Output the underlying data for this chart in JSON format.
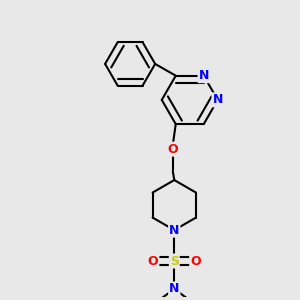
{
  "background_color": "#e8e8e8",
  "bond_color": "#000000",
  "N_color": "#0000ff",
  "O_color": "#ff0000",
  "S_color": "#cccc00",
  "font_size": 9,
  "line_width": 1.5,
  "fig_width": 3.0,
  "fig_height": 3.0,
  "dpi": 100,
  "xlim": [
    0,
    1
  ],
  "ylim": [
    0,
    1
  ]
}
